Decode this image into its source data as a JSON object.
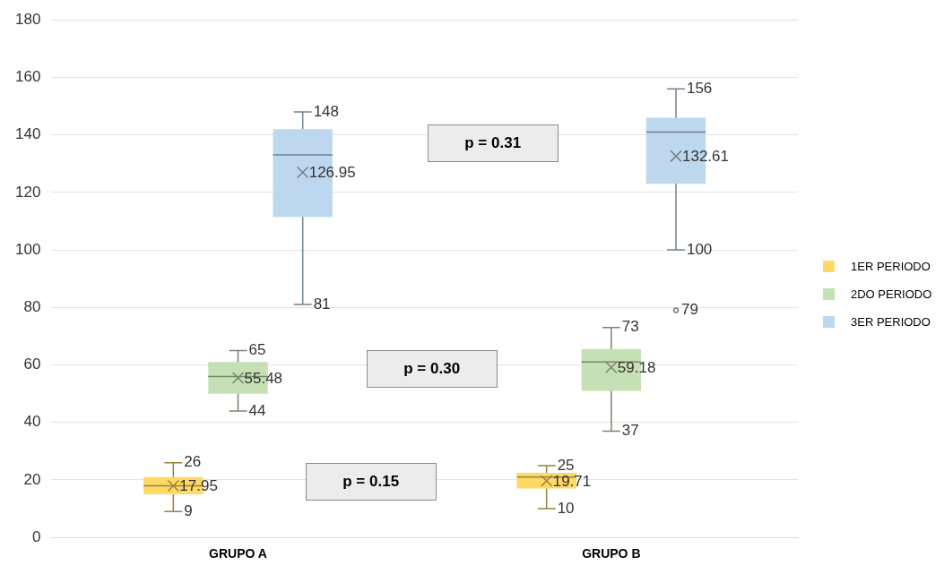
{
  "chart_data": {
    "type": "box",
    "categories": [
      "GRUPO A",
      "GRUPO B"
    ],
    "series": [
      {
        "name": "1ER PERIODO",
        "color": "#ffd966",
        "boxes": [
          {
            "low": 9,
            "q1": 15,
            "median": 18,
            "q3": 21,
            "high": 26,
            "mean": 17.95
          },
          {
            "low": 10,
            "q1": 17,
            "median": 21,
            "q3": 22.5,
            "high": 25,
            "mean": 19.71
          }
        ]
      },
      {
        "name": "2DO PERIODO",
        "color": "#c5e0b4",
        "boxes": [
          {
            "low": 44,
            "q1": 50,
            "median": 56,
            "q3": 61,
            "high": 65,
            "mean": 55.48
          },
          {
            "low": 37,
            "q1": 51,
            "median": 61,
            "q3": 65.5,
            "high": 73,
            "mean": 59.18
          }
        ]
      },
      {
        "name": "3ER PERIODO",
        "color": "#bdd7ee",
        "boxes": [
          {
            "low": 81,
            "q1": 111.5,
            "median": 133,
            "q3": 142,
            "high": 148,
            "mean": 126.95
          },
          {
            "low": 100,
            "q1": 123,
            "median": 141,
            "q3": 146,
            "high": 156,
            "mean": 132.61,
            "outliers": [
              79
            ]
          }
        ]
      }
    ],
    "ylim": [
      0,
      180
    ],
    "yticks": [
      0,
      20,
      40,
      60,
      80,
      100,
      120,
      140,
      160,
      180
    ],
    "grid": "y",
    "legend": "right",
    "annotations": [
      "p = 0.15",
      "p = 0.30",
      "p = 0.31",
      "26",
      "17.95",
      "9",
      "25",
      "19.71",
      "10",
      "65",
      "55.48",
      "44",
      "73",
      "59.18",
      "37",
      "148",
      "126.95",
      "81",
      "156",
      "132.61",
      "100",
      "79"
    ]
  }
}
